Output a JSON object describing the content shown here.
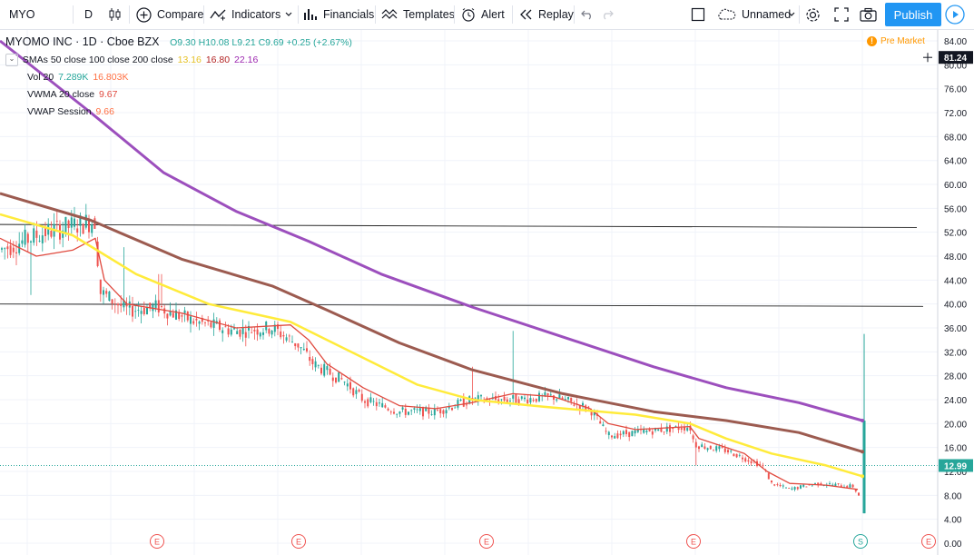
{
  "toolbar": {
    "symbol": "MYO",
    "interval": "D",
    "compare": "Compare",
    "indicators": "Indicators",
    "financials": "Financials",
    "templates": "Templates",
    "alert": "Alert",
    "replay": "Replay",
    "layout_name": "Unnamed",
    "publish": "Publish"
  },
  "legend": {
    "title": "MYOMO INC · 1D · Cboe BZX",
    "ohlc": "O9.30  H10.08  L9.21  C9.69  +0.25 (+2.67%)",
    "sma_label": "SMAs 50 close 100 close 200 close",
    "sma50": "13.16",
    "sma100": "16.80",
    "sma200": "22.16",
    "vol_label": "Vol 20",
    "vol1": "7.289K",
    "vol2": "16.803K",
    "vwma_label": "VWMA 20 close",
    "vwma": "9.67",
    "vwap_label": "VWAP Session",
    "vwap": "9.66"
  },
  "pre_market": "Pre Market",
  "colors": {
    "accent": "#2196f3",
    "sma50": "#ffeb3b",
    "sma100": "#9c5b50",
    "sma200": "#9c4fbd",
    "vwma": "#e04a3f",
    "up": "#26a69a",
    "down": "#ef5350",
    "premarket": "#ff9800"
  },
  "chart_data": {
    "type": "candlestick",
    "y_axis": {
      "ticks": [
        "84.00",
        "80.00",
        "76.00",
        "72.00",
        "68.00",
        "64.00",
        "60.00",
        "56.00",
        "52.00",
        "48.00",
        "44.00",
        "40.00",
        "36.00",
        "32.00",
        "28.00",
        "24.00",
        "20.00",
        "16.00",
        "12.00",
        "8.00",
        "4.00",
        "0.00"
      ],
      "range": [
        0,
        86
      ]
    },
    "price_labels": [
      {
        "value": 81.24,
        "text": "81.24",
        "color": "#131722"
      },
      {
        "value": 12.99,
        "text": "12.99",
        "color": "#26a69a"
      }
    ],
    "horizontal_lines": [
      {
        "from": [
          0,
          53.3
        ],
        "to": [
          1010,
          52.8
        ]
      },
      {
        "from": [
          0,
          40.0
        ],
        "to": [
          1017,
          39.6
        ]
      }
    ],
    "last_price": 12.99,
    "earnings_markers": [
      "E",
      "E",
      "E",
      "E",
      "E"
    ],
    "split_marker": "S",
    "anchors": [
      [
        0,
        49
      ],
      [
        50,
        52
      ],
      [
        105,
        54
      ],
      [
        110,
        42
      ],
      [
        140,
        39
      ],
      [
        175,
        39.5
      ],
      [
        215,
        37
      ],
      [
        260,
        35.5
      ],
      [
        300,
        36
      ],
      [
        330,
        33
      ],
      [
        345,
        30
      ],
      [
        380,
        27
      ],
      [
        400,
        24
      ],
      [
        440,
        22
      ],
      [
        480,
        22
      ],
      [
        520,
        24
      ],
      [
        565,
        24
      ],
      [
        610,
        24.5
      ],
      [
        650,
        22.5
      ],
      [
        670,
        18
      ],
      [
        700,
        18.5
      ],
      [
        760,
        19.5
      ],
      [
        765,
        16.5
      ],
      [
        800,
        15.5
      ],
      [
        840,
        13
      ],
      [
        850,
        10
      ],
      [
        870,
        9
      ],
      [
        900,
        10
      ],
      [
        940,
        9.5
      ],
      [
        950,
        7
      ]
    ],
    "sma50_path": [
      [
        0,
        55
      ],
      [
        80,
        51.5
      ],
      [
        150,
        45
      ],
      [
        230,
        40
      ],
      [
        320,
        37
      ],
      [
        400,
        31
      ],
      [
        460,
        26.5
      ],
      [
        520,
        24
      ],
      [
        600,
        22.8
      ],
      [
        700,
        21.5
      ],
      [
        760,
        20
      ],
      [
        800,
        17.5
      ],
      [
        850,
        15
      ],
      [
        910,
        13
      ],
      [
        950,
        11.2
      ]
    ],
    "sma100_path": [
      [
        0,
        58.5
      ],
      [
        100,
        54
      ],
      [
        200,
        47.5
      ],
      [
        300,
        43
      ],
      [
        360,
        39
      ],
      [
        440,
        33.5
      ],
      [
        520,
        29
      ],
      [
        620,
        25
      ],
      [
        720,
        22
      ],
      [
        800,
        20.5
      ],
      [
        880,
        18.5
      ],
      [
        950,
        15.3
      ]
    ],
    "sma200_path": [
      [
        0,
        84
      ],
      [
        100,
        72
      ],
      [
        180,
        62
      ],
      [
        260,
        55.5
      ],
      [
        340,
        50.5
      ],
      [
        420,
        45
      ],
      [
        520,
        39.5
      ],
      [
        620,
        34.5
      ],
      [
        720,
        29.5
      ],
      [
        800,
        26
      ],
      [
        880,
        23.5
      ],
      [
        950,
        20.5
      ]
    ],
    "vwma_path": [
      [
        0,
        51
      ],
      [
        40,
        48
      ],
      [
        80,
        49
      ],
      [
        105,
        51
      ],
      [
        115,
        44
      ],
      [
        140,
        40
      ],
      [
        200,
        38.5
      ],
      [
        260,
        36
      ],
      [
        320,
        36.5
      ],
      [
        340,
        34
      ],
      [
        360,
        30
      ],
      [
        400,
        26
      ],
      [
        440,
        23
      ],
      [
        480,
        22.5
      ],
      [
        520,
        23.5
      ],
      [
        565,
        25
      ],
      [
        610,
        24.5
      ],
      [
        650,
        22.5
      ],
      [
        670,
        20
      ],
      [
        700,
        19
      ],
      [
        760,
        19.5
      ],
      [
        770,
        17.5
      ],
      [
        820,
        15
      ],
      [
        845,
        12
      ],
      [
        870,
        10
      ],
      [
        910,
        9.7
      ],
      [
        945,
        9
      ]
    ],
    "spike": {
      "x": 952,
      "high": 35,
      "close": 20.5,
      "low": 5
    }
  }
}
